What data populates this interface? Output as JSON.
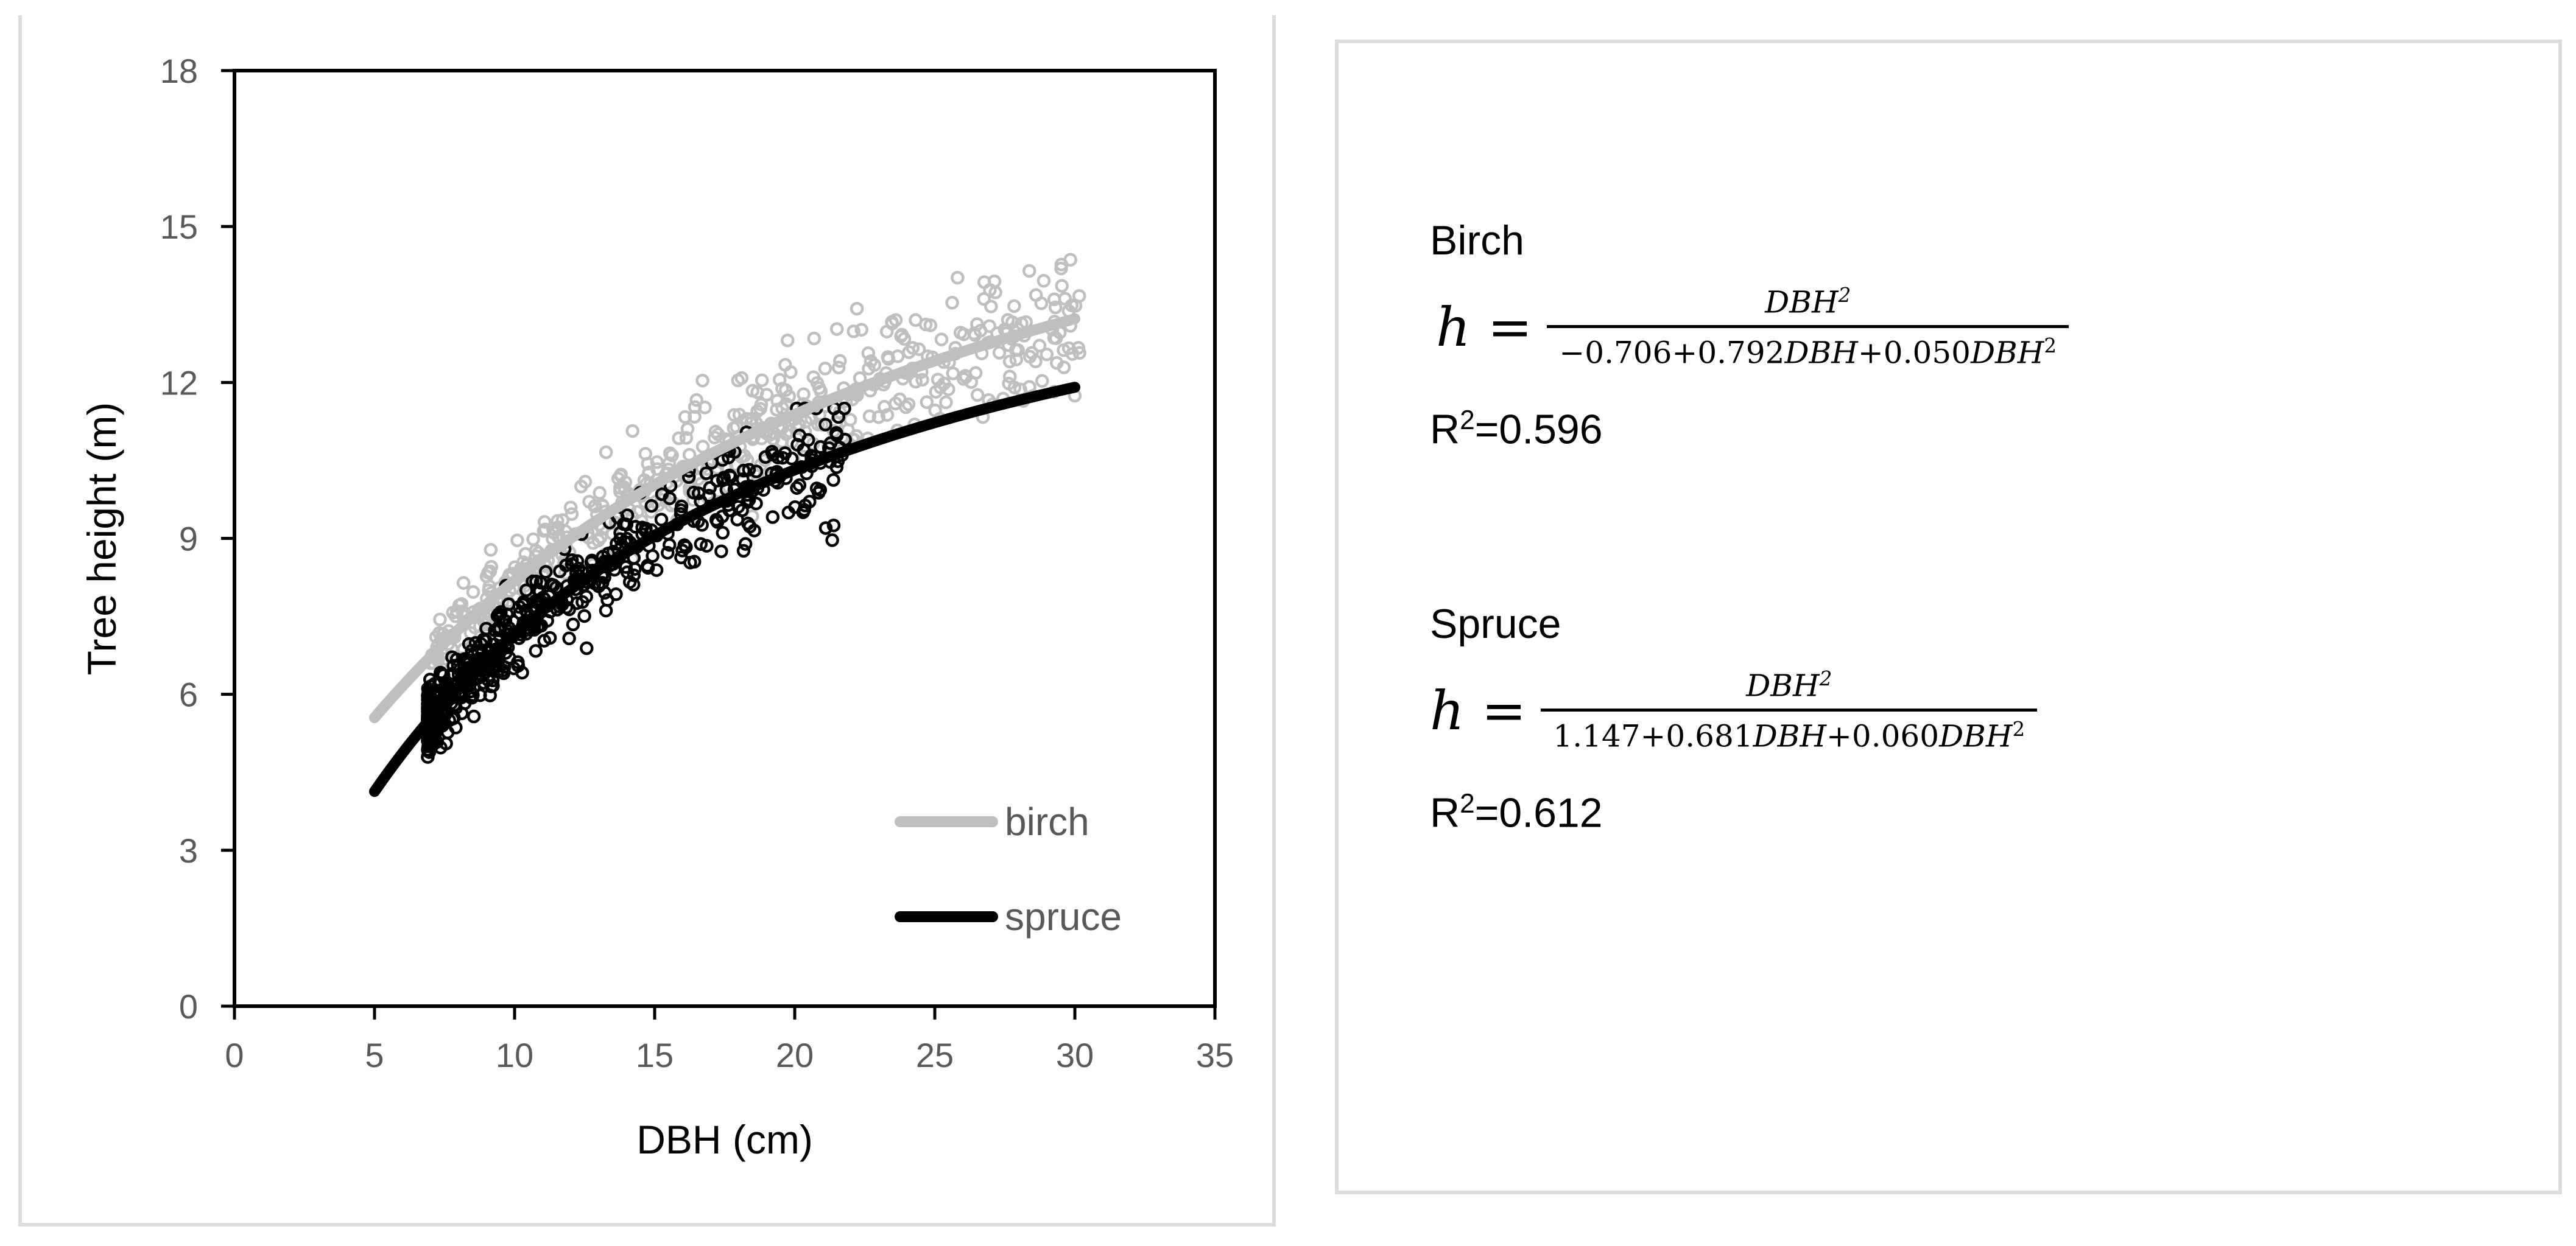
{
  "colors": {
    "birch": "#bfbfbf",
    "spruce": "#000000",
    "axis": "#000000",
    "ticks": "#595959",
    "panel_border": "#dcdcdc"
  },
  "chart_data": {
    "type": "scatter",
    "xlabel": "DBH (cm)",
    "ylabel": "Tree height (m)",
    "xlim": [
      0,
      35
    ],
    "ylim": [
      0,
      18
    ],
    "x_ticks": [
      "0",
      "5",
      "10",
      "15",
      "20",
      "25",
      "30",
      "35"
    ],
    "y_ticks": [
      "0",
      "3",
      "6",
      "9",
      "12",
      "15",
      "18"
    ],
    "grid": false,
    "legend_position": "bottom-right",
    "series": [
      {
        "name": "birch",
        "color": "#bfbfbf",
        "marker": "open-circle",
        "n_points": 520,
        "x_range": [
          7,
          30.2
        ],
        "y_range": [
          6.6,
          14.8
        ],
        "fit": {
          "model": "h = DBH^2 / (-0.706 + 0.792 DBH + 0.050 DBH^2)",
          "a": -0.706,
          "b": 0.792,
          "c": 0.05,
          "x_range": [
            5,
            30
          ]
        }
      },
      {
        "name": "spruce",
        "color": "#000000",
        "marker": "open-circle",
        "n_points": 560,
        "x_range": [
          6.9,
          21.8
        ],
        "y_range": [
          3.9,
          11.5
        ],
        "fit": {
          "model": "h = DBH^2 / (1.147 + 0.681 DBH + 0.060 DBH^2)",
          "a": 1.147,
          "b": 0.681,
          "c": 0.06,
          "x_range": [
            5,
            30
          ]
        }
      }
    ]
  },
  "equations": {
    "birch": {
      "label": "Birch",
      "lhs": "h =",
      "numerator": "DBH",
      "numerator_exp": "2",
      "denominator": "−0.706+0.792",
      "denominator_var": "DBH",
      "denominator_mid": "+0.050",
      "denominator_var2": "DBH",
      "denominator_exp": "2",
      "r2_prefix": "R",
      "r2_exp": "2",
      "r2_value": "=0.596"
    },
    "spruce": {
      "label": "Spruce",
      "lhs": "h =",
      "numerator": "DBH",
      "numerator_exp": "2",
      "denominator": "1.147+0.681",
      "denominator_var": "DBH",
      "denominator_mid": "+0.060",
      "denominator_var2": "DBH",
      "denominator_exp": "2",
      "r2_prefix": "R",
      "r2_exp": "2",
      "r2_value": "=0.612"
    }
  }
}
